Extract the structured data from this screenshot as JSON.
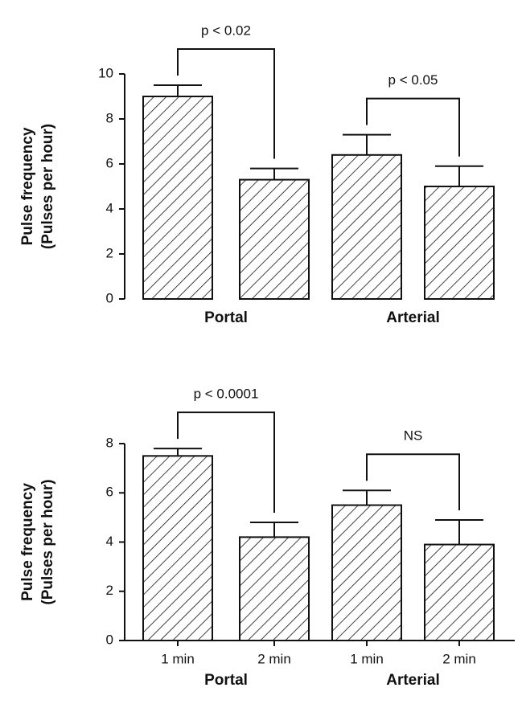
{
  "chart_data": [
    {
      "type": "bar",
      "ylabel": [
        "Pulse frequency",
        "(Pulses per hour)"
      ],
      "categories": [
        null,
        null,
        null,
        null
      ],
      "groups": [
        "Portal",
        "Arterial"
      ],
      "values": [
        9.0,
        5.3,
        6.4,
        5.0
      ],
      "errors": [
        0.5,
        0.5,
        0.9,
        0.9
      ],
      "comparisons": [
        "p < 0.02",
        "p < 0.05"
      ],
      "ylim": [
        0,
        10
      ],
      "yticks": [
        0,
        2,
        4,
        6,
        8,
        10
      ],
      "x_axis": false,
      "hatch": true,
      "color": "#111111"
    },
    {
      "type": "bar",
      "ylabel": [
        "Pulse frequency",
        "(Pulses per hour)"
      ],
      "categories": [
        "1  min",
        "2  min",
        "1  min",
        "2  min"
      ],
      "groups": [
        "Portal",
        "Arterial"
      ],
      "values": [
        7.5,
        4.2,
        5.5,
        3.9
      ],
      "errors": [
        0.3,
        0.6,
        0.6,
        1.0
      ],
      "comparisons": [
        "p < 0.0001",
        "NS"
      ],
      "ylim": [
        0,
        8
      ],
      "yticks": [
        0,
        2,
        4,
        6,
        8
      ],
      "x_axis": true,
      "hatch": true,
      "color": "#111111"
    }
  ]
}
